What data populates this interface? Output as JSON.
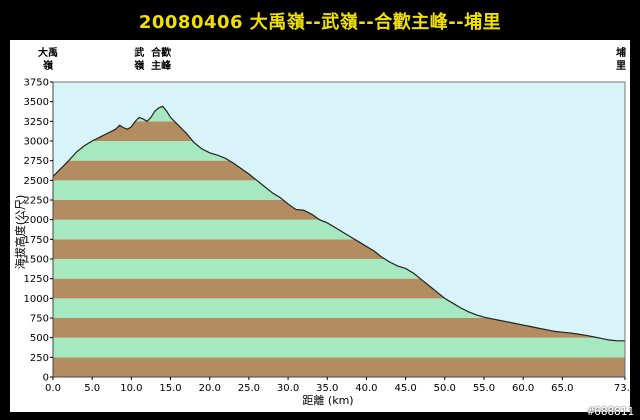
{
  "title": "20080406 大禹嶺--武嶺--合歡主峰--埔里",
  "watermark": "#688811",
  "colors": {
    "background": "#000000",
    "title": "#f0e000",
    "sky": "#d8f4f8",
    "band_green": "#a6e8c0",
    "band_brown": "#b38c62",
    "profile_line": "#222222"
  },
  "chart_data": {
    "type": "area",
    "xlabel": "距離 (km)",
    "ylabel": "海拔高度(公尺)",
    "xlim": [
      0,
      73
    ],
    "ylim": [
      0,
      3750
    ],
    "x_ticks": [
      0,
      5,
      10,
      15,
      20,
      25,
      30,
      35,
      40,
      45,
      50,
      55,
      60,
      65,
      73
    ],
    "x_tick_labels": [
      "0.0",
      "5.0",
      "10.0",
      "15.0",
      "20.0",
      "25.0",
      "30.0",
      "35.0",
      "40.0",
      "45.0",
      "50.0",
      "55.0",
      "60.0",
      "65.0",
      "73.0"
    ],
    "y_ticks": [
      0,
      250,
      500,
      750,
      1000,
      1250,
      1500,
      1750,
      2000,
      2250,
      2500,
      2750,
      3000,
      3250,
      3500,
      3750
    ],
    "band_step": 250,
    "grid": false,
    "waypoints": [
      {
        "name": "大禹\n嶺",
        "x": 0
      },
      {
        "name": "武\n嶺",
        "x": 11
      },
      {
        "name": "合歡\n主峰",
        "x": 13.8
      },
      {
        "name": "埔\n里",
        "x": 73
      }
    ],
    "series": [
      {
        "x": [
          0,
          1,
          2,
          3,
          4,
          5,
          6,
          7,
          8,
          8.5,
          9,
          9.5,
          10,
          10.5,
          11,
          11.5,
          12,
          12.5,
          13,
          13.5,
          14,
          14.5,
          15,
          16,
          17,
          18,
          19,
          20,
          21,
          22,
          23,
          24,
          25,
          26,
          27,
          28,
          29,
          30,
          31,
          32,
          33,
          34,
          35,
          36,
          37,
          38,
          39,
          40,
          41,
          42,
          43,
          44,
          45,
          46,
          47,
          48,
          49,
          50,
          51,
          52,
          53,
          54,
          55,
          56,
          57,
          58,
          59,
          60,
          61,
          62,
          63,
          64,
          65,
          66,
          67,
          68,
          69,
          70,
          71,
          72,
          73
        ],
        "y": [
          2550,
          2650,
          2750,
          2860,
          2940,
          3000,
          3050,
          3100,
          3150,
          3200,
          3170,
          3150,
          3180,
          3250,
          3300,
          3280,
          3250,
          3300,
          3380,
          3420,
          3440,
          3380,
          3300,
          3200,
          3100,
          2980,
          2900,
          2850,
          2820,
          2780,
          2720,
          2650,
          2580,
          2500,
          2420,
          2340,
          2280,
          2200,
          2130,
          2120,
          2070,
          2000,
          1960,
          1900,
          1840,
          1780,
          1720,
          1660,
          1600,
          1520,
          1460,
          1410,
          1380,
          1320,
          1240,
          1160,
          1080,
          1000,
          940,
          880,
          830,
          790,
          760,
          740,
          720,
          700,
          680,
          660,
          640,
          620,
          600,
          580,
          570,
          560,
          545,
          530,
          510,
          490,
          470,
          460,
          460
        ]
      }
    ]
  }
}
